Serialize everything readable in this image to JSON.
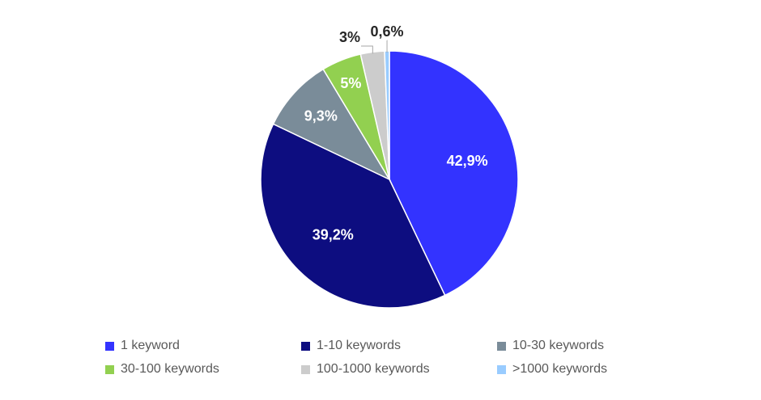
{
  "chart_data": {
    "type": "pie",
    "title": "",
    "slices": [
      {
        "label": "1 keyword",
        "value": 42.9,
        "display": "42,9%",
        "color": "#3333ff"
      },
      {
        "label": "1-10 keywords",
        "value": 39.2,
        "display": "39,2%",
        "color": "#0d0d80"
      },
      {
        "label": "10-30 keywords",
        "value": 9.3,
        "display": "9,3%",
        "color": "#7a8c99"
      },
      {
        "label": "30-100 keywords",
        "value": 5,
        "display": "5%",
        "color": "#92d050"
      },
      {
        "label": "100-1000 keywords",
        "value": 3,
        "display": "3%",
        "color": "#cccccc"
      },
      {
        "label": ">1000 keywords",
        "value": 0.6,
        "display": "0,6%",
        "color": "#99ccff"
      }
    ],
    "legend_position": "bottom"
  }
}
